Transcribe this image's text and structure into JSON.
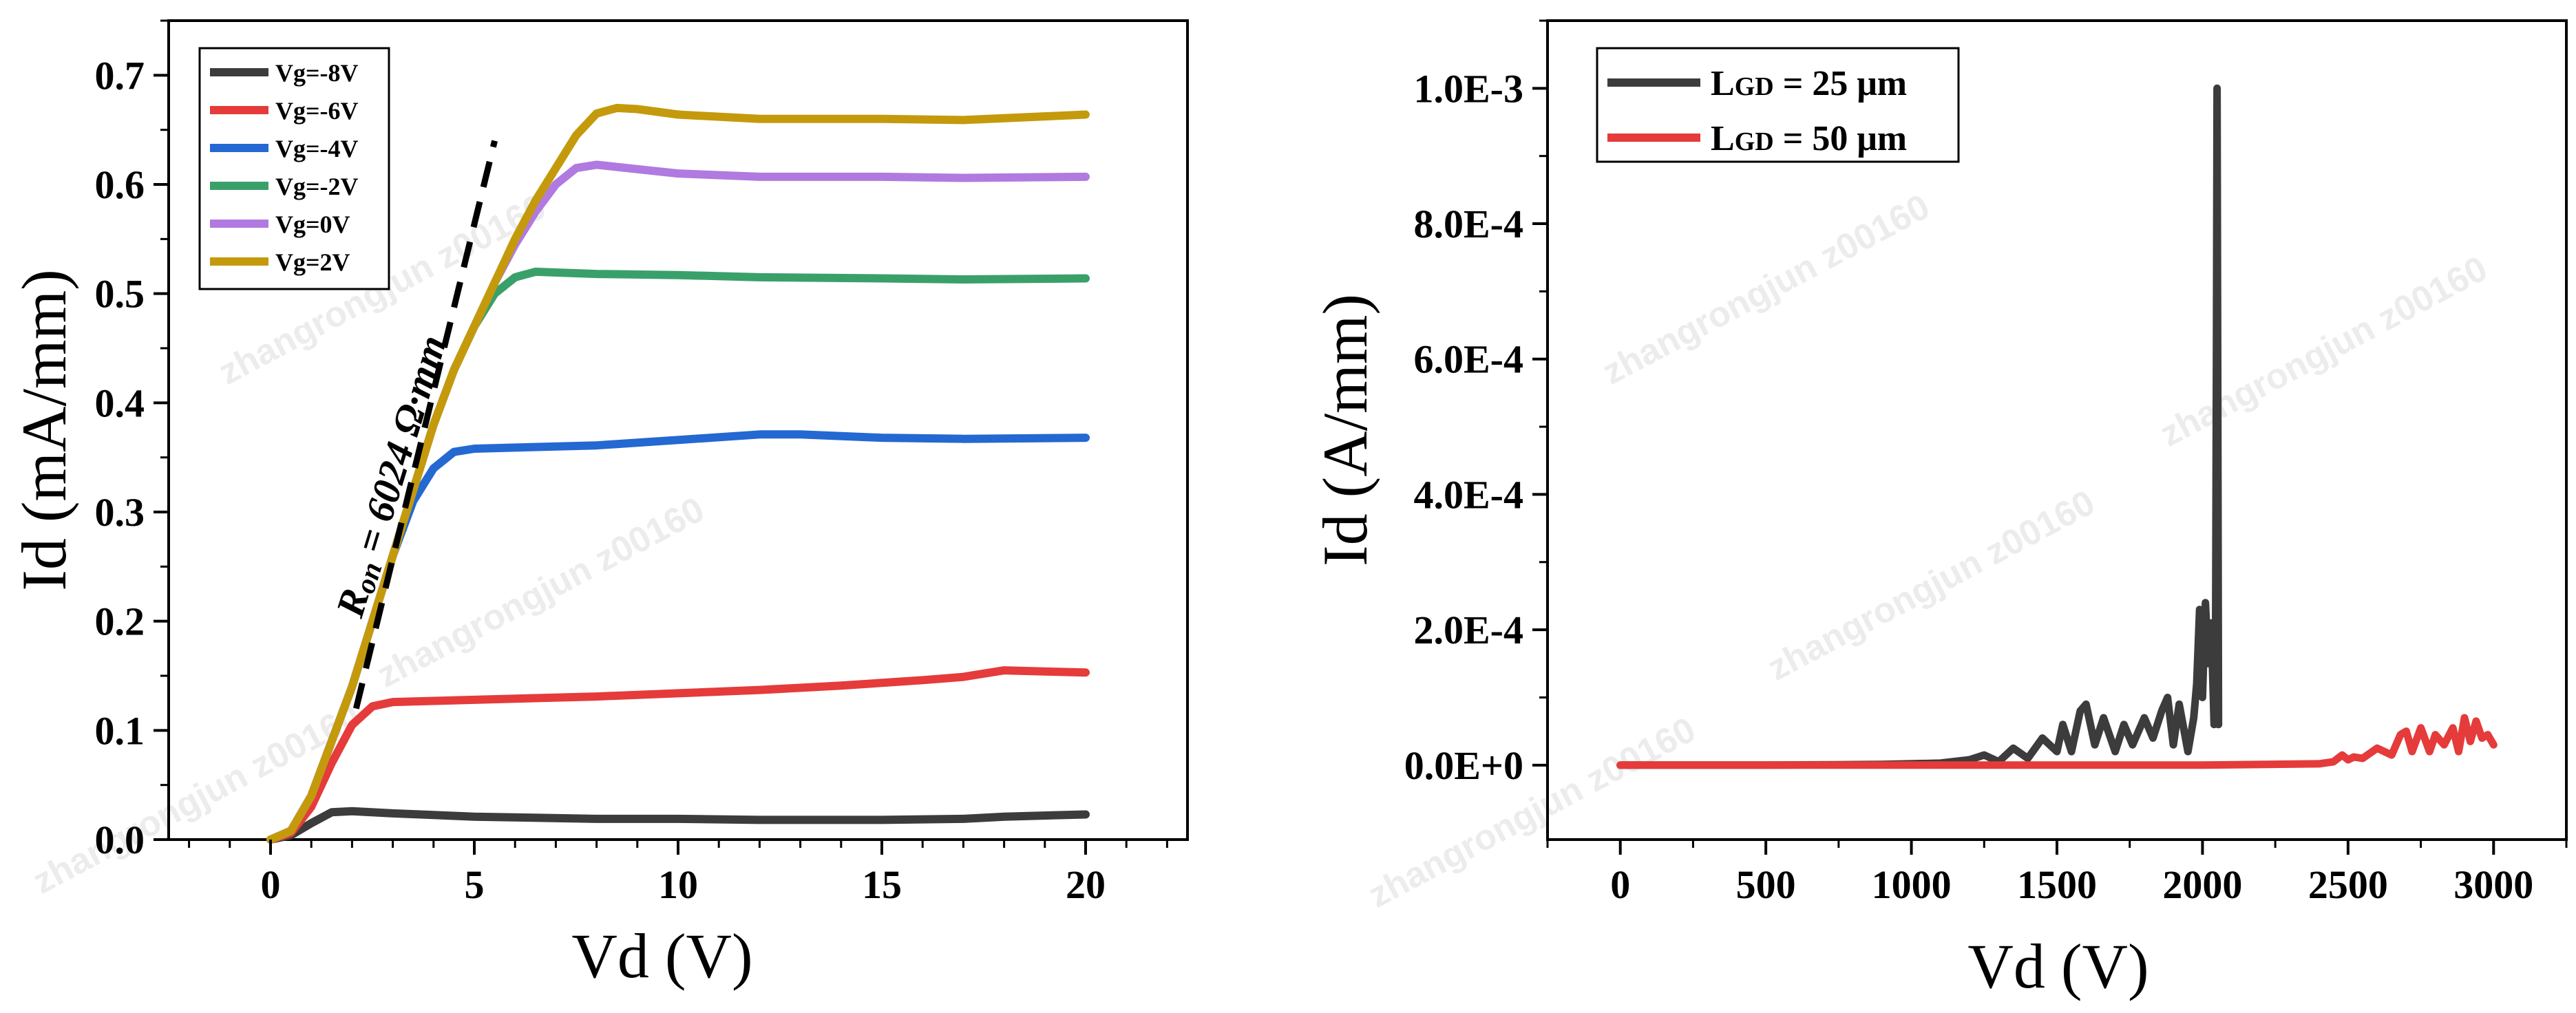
{
  "colors": {
    "black_gray": "#3c3c3c",
    "red": "#e53b3b",
    "blue": "#2468d2",
    "green": "#3aa06a",
    "purple": "#b07ae0",
    "gold": "#c49a0c"
  },
  "watermark_text": "zhangrongjun z00160",
  "chart_data": [
    {
      "type": "line",
      "title": "",
      "xlabel": "Vd (V)",
      "ylabel": "Id (mA/mm)",
      "xlim": [
        -2.5,
        22.5
      ],
      "ylim": [
        0.0,
        0.75
      ],
      "xticks": [
        0,
        5,
        10,
        15,
        20
      ],
      "xtick_labels": [
        "0",
        "5",
        "10",
        "15",
        "20"
      ],
      "yticks": [
        0.0,
        0.1,
        0.2,
        0.3,
        0.4,
        0.5,
        0.6,
        0.7
      ],
      "ytick_labels": [
        "0.0",
        "0.1",
        "0.2",
        "0.3",
        "0.4",
        "0.5",
        "0.6",
        "0.7"
      ],
      "legend_position": "top-left",
      "annotation": {
        "text_main": "R",
        "text_sub": "on",
        "text_rest": " = 6024 Ω·mm",
        "line": {
          "x": [
            2.1,
            5.5
          ],
          "y": [
            0.12,
            0.64
          ]
        }
      },
      "series": [
        {
          "name": "Vg=-8V",
          "color_key": "black_gray",
          "x": [
            0,
            0.5,
            1.0,
            1.5,
            2,
            3,
            5,
            8,
            10,
            12,
            15,
            17,
            18,
            20
          ],
          "y": [
            0,
            0.004,
            0.015,
            0.025,
            0.026,
            0.024,
            0.021,
            0.019,
            0.019,
            0.018,
            0.018,
            0.019,
            0.021,
            0.023
          ]
        },
        {
          "name": "Vg=-6V",
          "color_key": "red",
          "x": [
            0,
            0.5,
            1,
            1.5,
            2,
            2.5,
            3,
            4,
            6,
            8,
            10,
            12,
            14,
            16,
            17,
            18,
            19,
            20
          ],
          "y": [
            0,
            0.006,
            0.03,
            0.07,
            0.105,
            0.122,
            0.126,
            0.127,
            0.129,
            0.131,
            0.134,
            0.137,
            0.141,
            0.146,
            0.149,
            0.155,
            0.154,
            0.153
          ]
        },
        {
          "name": "Vg=-4V",
          "color_key": "blue",
          "x": [
            0,
            0.5,
            1,
            1.5,
            2,
            2.5,
            3,
            3.5,
            4,
            4.5,
            5,
            6,
            8,
            10,
            12,
            13,
            15,
            17,
            20
          ],
          "y": [
            0,
            0.008,
            0.04,
            0.09,
            0.14,
            0.2,
            0.26,
            0.31,
            0.34,
            0.355,
            0.358,
            0.359,
            0.361,
            0.366,
            0.371,
            0.371,
            0.368,
            0.367,
            0.368
          ]
        },
        {
          "name": "Vg=-2V",
          "color_key": "green",
          "x": [
            0,
            0.5,
            1,
            1.5,
            2,
            2.5,
            3,
            3.5,
            4,
            4.5,
            5,
            5.5,
            6,
            6.5,
            8,
            10,
            12,
            15,
            17,
            20
          ],
          "y": [
            0,
            0.008,
            0.04,
            0.09,
            0.14,
            0.2,
            0.26,
            0.32,
            0.38,
            0.43,
            0.47,
            0.5,
            0.515,
            0.52,
            0.518,
            0.517,
            0.515,
            0.514,
            0.513,
            0.514
          ]
        },
        {
          "name": "Vg=0V",
          "color_key": "purple",
          "x": [
            0,
            0.5,
            1,
            1.5,
            2,
            2.5,
            3,
            3.5,
            4,
            4.5,
            5,
            5.5,
            6,
            6.5,
            7,
            7.5,
            8,
            9,
            10,
            12,
            15,
            17,
            20
          ],
          "y": [
            0,
            0.008,
            0.04,
            0.09,
            0.14,
            0.2,
            0.26,
            0.32,
            0.38,
            0.43,
            0.47,
            0.51,
            0.545,
            0.575,
            0.6,
            0.615,
            0.618,
            0.614,
            0.61,
            0.607,
            0.607,
            0.606,
            0.607
          ]
        },
        {
          "name": "Vg=2V",
          "color_key": "gold",
          "x": [
            0,
            0.5,
            1,
            1.5,
            2,
            2.5,
            3,
            3.5,
            4,
            4.5,
            5,
            5.5,
            6,
            6.5,
            7,
            7.5,
            8,
            8.5,
            9,
            10,
            12,
            15,
            17,
            20
          ],
          "y": [
            0,
            0.008,
            0.04,
            0.09,
            0.14,
            0.2,
            0.26,
            0.32,
            0.38,
            0.43,
            0.47,
            0.51,
            0.55,
            0.585,
            0.615,
            0.645,
            0.665,
            0.67,
            0.669,
            0.664,
            0.66,
            0.66,
            0.659,
            0.664
          ]
        }
      ]
    },
    {
      "type": "line",
      "title": "",
      "xlabel": "Vd (V)",
      "ylabel": "Id (A/mm)",
      "xlim": [
        -250,
        3250
      ],
      "ylim": [
        -0.00011,
        0.0011
      ],
      "xticks": [
        0,
        500,
        1000,
        1500,
        2000,
        2500,
        3000
      ],
      "xtick_labels": [
        "0",
        "500",
        "1000",
        "1500",
        "2000",
        "2500",
        "3000"
      ],
      "yticks": [
        0.0,
        0.0002,
        0.0004,
        0.0006,
        0.0008,
        0.001
      ],
      "ytick_labels": [
        "0.0E+0",
        "2.0E-4",
        "4.0E-4",
        "6.0E-4",
        "8.0E-4",
        "1.0E-3"
      ],
      "legend_position": "top-left",
      "series": [
        {
          "name_main": "L",
          "name_sub": "GD",
          "name_rest": " = 25 μm",
          "color_key": "black_gray",
          "x": [
            0,
            500,
            900,
            1100,
            1200,
            1250,
            1300,
            1350,
            1400,
            1450,
            1500,
            1520,
            1550,
            1580,
            1600,
            1630,
            1660,
            1700,
            1730,
            1760,
            1800,
            1830,
            1860,
            1880,
            1900,
            1920,
            1950,
            1970,
            1980,
            1990,
            2000,
            2010,
            2020,
            2030,
            2040,
            2045,
            2048,
            2050,
            2055
          ],
          "y": [
            0,
            0,
            1e-06,
            3e-06,
            8e-06,
            1.5e-05,
            5e-06,
            2.5e-05,
            1e-05,
            4e-05,
            2e-05,
            6e-05,
            2e-05,
            8e-05,
            9e-05,
            3e-05,
            7e-05,
            2e-05,
            6e-05,
            3e-05,
            7e-05,
            4e-05,
            8e-05,
            0.0001,
            3e-05,
            9e-05,
            2e-05,
            7e-05,
            0.00012,
            0.00023,
            0.0001,
            0.00024,
            0.00015,
            0.00021,
            6e-05,
            0.0002,
            0.0006,
            0.001,
            6e-05
          ]
        },
        {
          "name_main": "L",
          "name_sub": "GD",
          "name_rest": " = 50 μm",
          "color_key": "red",
          "x": [
            0,
            1000,
            2000,
            2400,
            2450,
            2480,
            2500,
            2520,
            2550,
            2600,
            2650,
            2680,
            2700,
            2720,
            2750,
            2780,
            2800,
            2830,
            2860,
            2880,
            2900,
            2920,
            2940,
            2960,
            2980,
            3000
          ],
          "y": [
            0,
            0,
            0,
            2e-06,
            5e-06,
            1.5e-05,
            8e-06,
            1.2e-05,
            1e-05,
            2.5e-05,
            1.5e-05,
            4.5e-05,
            5e-05,
            2e-05,
            5.5e-05,
            2e-05,
            4.5e-05,
            3e-05,
            5.5e-05,
            2e-05,
            7e-05,
            3.5e-05,
            6.5e-05,
            4e-05,
            4.5e-05,
            3e-05
          ]
        }
      ]
    }
  ]
}
